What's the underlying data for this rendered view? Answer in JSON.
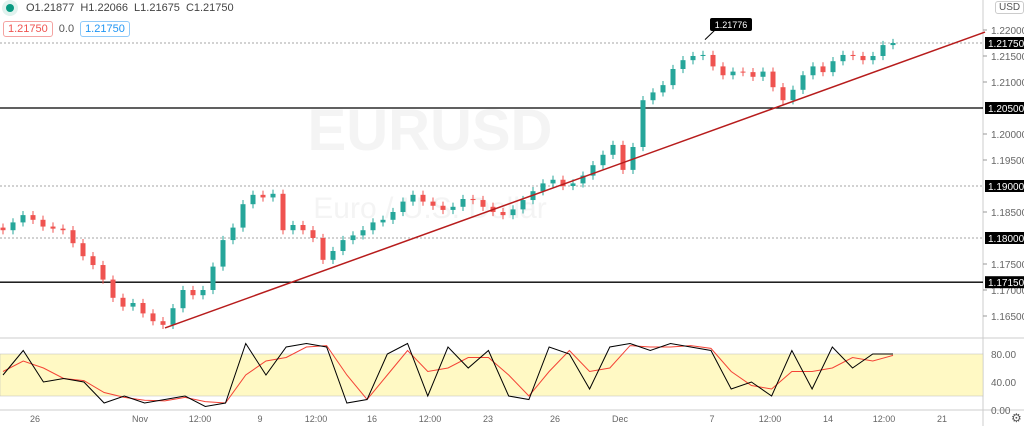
{
  "symbol": "EURUSD",
  "description": "Euro / U.S. Dollar",
  "ohlc": {
    "open": "O1.21877",
    "high": "H1.22066",
    "low": "L1.21675",
    "close": "C1.21750"
  },
  "quote": {
    "bid": "1.21750",
    "spread": "0.0",
    "ask": "1.21750"
  },
  "currency": "USD",
  "colors": {
    "up": "#26a69a",
    "down": "#ef5350",
    "trendline": "#b71c1c",
    "band": "#fff9c4",
    "k": "#000000",
    "d": "#f44336"
  },
  "chart_data": {
    "type": "candlestick",
    "ylim": [
      1.159,
      1.2255
    ],
    "price_ticks": [
      "1.22000",
      "1.21500",
      "1.21000",
      "1.20000",
      "1.19500",
      "1.18500",
      "1.17500",
      "1.17000",
      "1.16500"
    ],
    "price_ticks_values": [
      1.22,
      1.215,
      1.21,
      1.2,
      1.195,
      1.185,
      1.175,
      1.17,
      1.165
    ],
    "highlighted_levels": [
      {
        "label": "1.21750",
        "value": 1.2175,
        "style": "dotted"
      },
      {
        "label": "1.20500",
        "value": 1.205,
        "style": "solid"
      },
      {
        "label": "1.19000",
        "value": 1.19,
        "style": "dotted"
      },
      {
        "label": "1.18000",
        "value": 1.18,
        "style": "dotted"
      },
      {
        "label": "1.17150",
        "value": 1.1715,
        "style": "solid"
      }
    ],
    "callout": {
      "label": "1.21776",
      "value": 1.21776
    },
    "trendline": {
      "from": 1.1627,
      "to": 1.2196
    },
    "x_ticks": [
      "26",
      "Nov",
      "12:00",
      "9",
      "12:00",
      "16",
      "12:00",
      "23",
      "26",
      "Dec",
      "7",
      "12:00",
      "14",
      "12:00",
      "21"
    ],
    "closes": [
      1.1815,
      1.183,
      1.1844,
      1.1835,
      1.1822,
      1.1818,
      1.1815,
      1.179,
      1.1765,
      1.1748,
      1.172,
      1.1685,
      1.1668,
      1.1675,
      1.1655,
      1.164,
      1.1633,
      1.1665,
      1.17,
      1.169,
      1.17,
      1.1745,
      1.1796,
      1.182,
      1.1865,
      1.1883,
      1.1878,
      1.1885,
      1.1815,
      1.1825,
      1.1815,
      1.18,
      1.1758,
      1.1775,
      1.1796,
      1.1805,
      1.1815,
      1.183,
      1.1835,
      1.185,
      1.187,
      1.1883,
      1.187,
      1.1862,
      1.1854,
      1.186,
      1.1875,
      1.1873,
      1.186,
      1.185,
      1.1844,
      1.1855,
      1.1873,
      1.189,
      1.1905,
      1.1912,
      1.19,
      1.1905,
      1.192,
      1.194,
      1.196,
      1.1979,
      1.1931,
      1.1975,
      1.2065,
      1.208,
      1.2094,
      1.2125,
      1.2142,
      1.215,
      1.2152,
      1.213,
      1.2113,
      1.212,
      1.2119,
      1.211,
      1.212,
      1.209,
      1.2065,
      1.2085,
      1.2113,
      1.213,
      1.2119,
      1.214,
      1.2152,
      1.215,
      1.2142,
      1.215,
      1.2171,
      1.2175
    ],
    "oscillator": {
      "ylim": [
        0,
        100
      ],
      "band": [
        20,
        80
      ],
      "ticks": [
        "80.00",
        "40.00",
        "0.00"
      ],
      "ticks_values": [
        80,
        40,
        0
      ],
      "k": [
        50,
        85,
        40,
        45,
        40,
        10,
        20,
        10,
        15,
        20,
        5,
        10,
        95,
        50,
        90,
        95,
        90,
        10,
        15,
        80,
        95,
        20,
        90,
        60,
        85,
        20,
        15,
        90,
        80,
        30,
        90,
        95,
        85,
        95,
        90,
        85,
        30,
        40,
        20,
        85,
        30,
        90,
        60,
        80,
        80
      ],
      "d": [
        55,
        70,
        60,
        45,
        42,
        25,
        18,
        14,
        13,
        18,
        12,
        10,
        50,
        70,
        75,
        90,
        92,
        50,
        15,
        50,
        85,
        55,
        60,
        75,
        75,
        50,
        20,
        55,
        85,
        55,
        60,
        92,
        90,
        90,
        92,
        88,
        55,
        35,
        30,
        55,
        55,
        60,
        75,
        70,
        78
      ]
    }
  }
}
